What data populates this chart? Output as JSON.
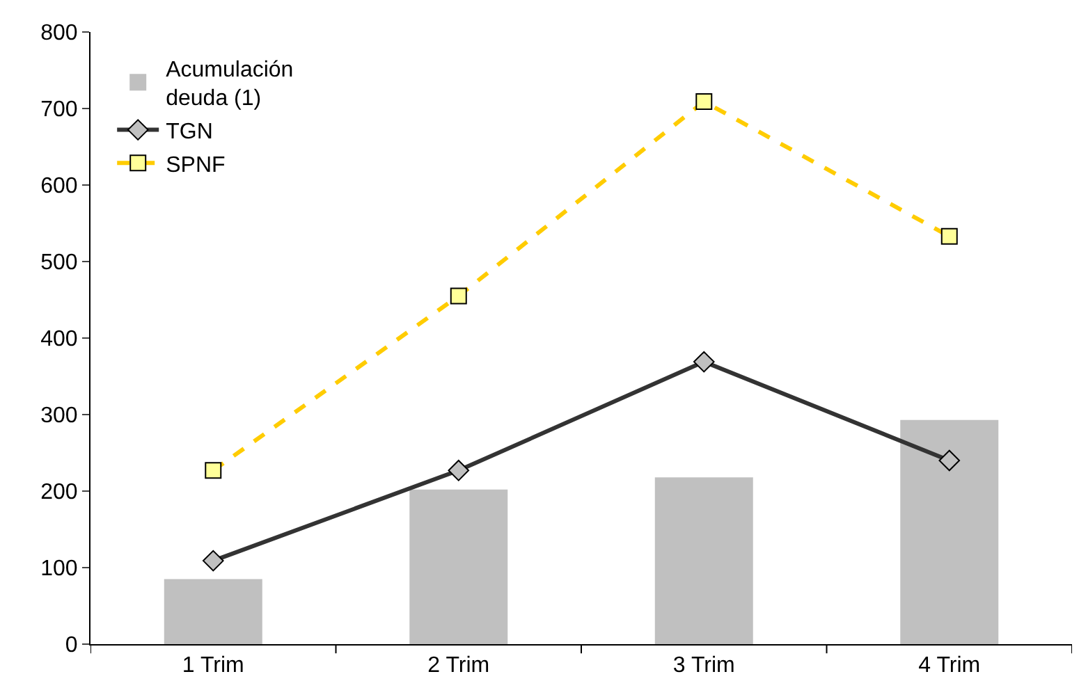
{
  "chart_data": {
    "type": "bar",
    "categories": [
      "1 Trim",
      "2 Trim",
      "3 Trim",
      "4 Trim"
    ],
    "series": [
      {
        "name": "Acumulación deuda (1)",
        "color": "#c0c0c0",
        "values": [
          85,
          202,
          218,
          293
        ]
      },
      {
        "name": "TGN",
        "type": "line",
        "color": "#333333",
        "marker": "diamond",
        "line_style": "solid",
        "values": [
          109,
          227,
          369,
          240
        ]
      },
      {
        "name": "SPNF",
        "type": "line",
        "color": "#ffcc00",
        "marker": "square",
        "line_style": "dashed",
        "values": [
          227,
          455,
          709,
          533
        ]
      }
    ],
    "ylim": [
      0,
      800
    ],
    "yticks": [
      0,
      100,
      200,
      300,
      400,
      500,
      600,
      700,
      800
    ],
    "legend": "top left"
  }
}
